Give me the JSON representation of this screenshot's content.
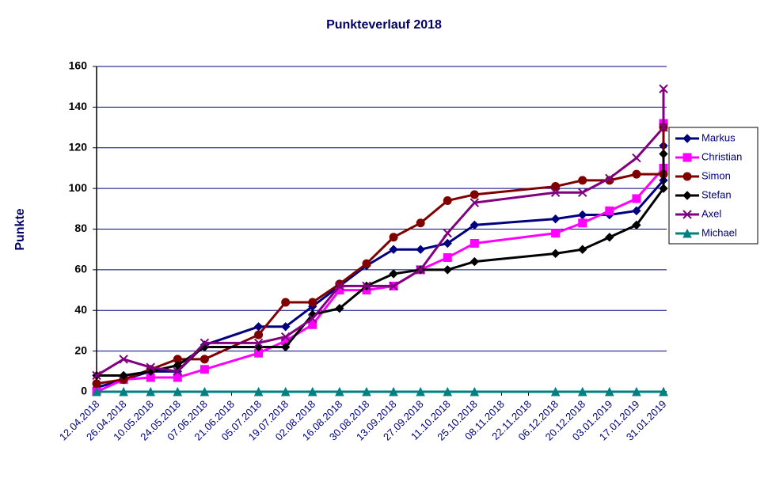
{
  "chart_data": {
    "type": "line",
    "title": "Punkteverlauf 2018",
    "y_label": "Punkte",
    "x": [
      "12.04.2018",
      "26.04.2018",
      "10.05.2018",
      "24.05.2018",
      "07.06.2018",
      "05.07.2018",
      "19.07.2018",
      "02.08.2018",
      "16.08.2018",
      "30.08.2018",
      "13.09.2018",
      "27.09.2018",
      "11.10.2018",
      "25.10.2018",
      "06.12.2018",
      "20.12.2018",
      "03.01.2019",
      "17.01.2019",
      "31.01.2019",
      "31.01.2019"
    ],
    "xlim": [
      "12.04.2018",
      "31.01.2019"
    ],
    "xticks": [
      "12.04.2018",
      "26.04.2018",
      "10.05.2018",
      "24.05.2018",
      "07.06.2018",
      "21.06.2018",
      "05.07.2018",
      "19.07.2018",
      "02.08.2018",
      "16.08.2018",
      "30.08.2018",
      "13.09.2018",
      "27.09.2018",
      "11.10.2018",
      "25.10.2018",
      "08.11.2018",
      "22.11.2018",
      "06.12.2018",
      "20.12.2018",
      "03.01.2019",
      "17.01.2019",
      "31.01.2019"
    ],
    "ylim": [
      0,
      160
    ],
    "yticks": [
      0,
      20,
      40,
      60,
      80,
      100,
      120,
      140,
      160
    ],
    "grid": true,
    "series": [
      {
        "name": "Markus",
        "color": "#000080",
        "marker": "diamond",
        "values": [
          2,
          6,
          10,
          10,
          23,
          32,
          32,
          42,
          52,
          62,
          70,
          70,
          73,
          82,
          85,
          87,
          87,
          89,
          104,
          121
        ]
      },
      {
        "name": "Christian",
        "color": "#ff00ff",
        "marker": "square",
        "values": [
          0,
          6,
          7,
          7,
          11,
          19,
          25,
          33,
          50,
          50,
          52,
          60,
          66,
          73,
          78,
          83,
          89,
          95,
          110,
          132
        ]
      },
      {
        "name": "Simon",
        "color": "#800000",
        "marker": "circle",
        "values": [
          4,
          6,
          11,
          16,
          16,
          28,
          44,
          44,
          53,
          63,
          76,
          83,
          94,
          97,
          101,
          104,
          104,
          107,
          107,
          130
        ]
      },
      {
        "name": "Stefan",
        "color": "#000000",
        "marker": "diamond",
        "values": [
          8,
          8,
          10,
          13,
          22,
          22,
          22,
          38,
          41,
          52,
          58,
          60,
          60,
          64,
          68,
          70,
          76,
          82,
          100,
          117
        ]
      },
      {
        "name": "Axel",
        "color": "#800080",
        "marker": "x",
        "values": [
          8,
          16,
          12,
          10,
          24,
          24,
          27,
          36,
          52,
          52,
          52,
          60,
          78,
          93,
          98,
          98,
          105,
          115,
          130,
          149
        ]
      },
      {
        "name": "Michael",
        "color": "#008080",
        "marker": "triangle",
        "values": [
          0,
          0,
          0,
          0,
          0,
          0,
          0,
          0,
          0,
          0,
          0,
          0,
          0,
          0,
          0,
          0,
          0,
          0,
          0,
          0
        ]
      }
    ]
  }
}
